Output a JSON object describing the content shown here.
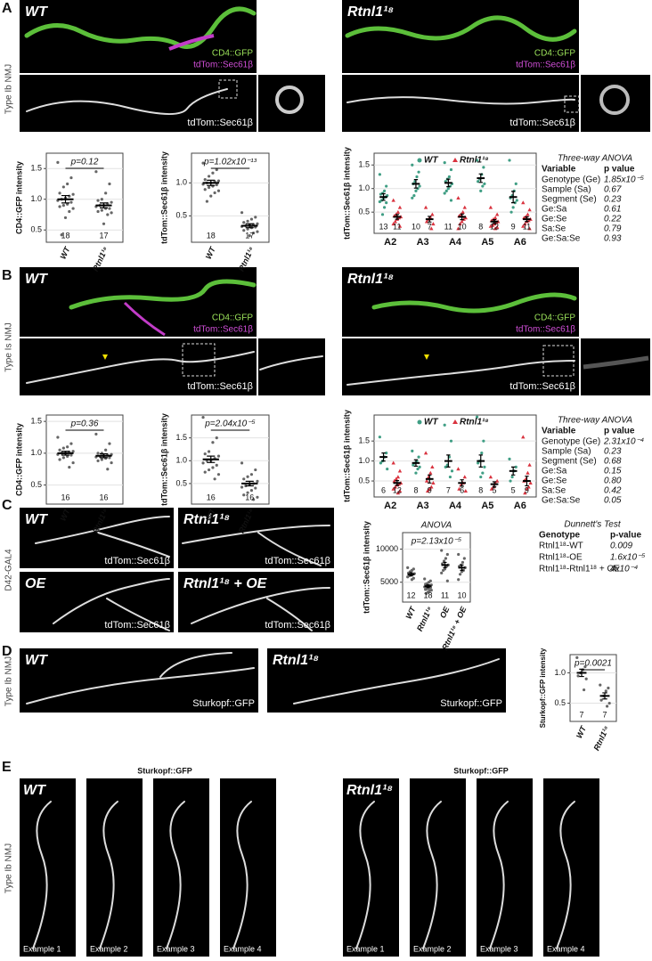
{
  "panel_letters": [
    "A",
    "B",
    "C",
    "D",
    "E"
  ],
  "side_labels": [
    "Type Ib NMJ",
    "Type Is NMJ",
    "D42-GAL4",
    "Type Ib NMJ",
    "Type Ib NMJ"
  ],
  "labels": {
    "wt": "WT",
    "mut": "Rtnl1¹⁸",
    "oe": "OE",
    "mut_oe": "Rtnl1¹⁸ + OE",
    "gfp": "CD4::GFP",
    "sec": "tdTom::Sec61β",
    "sturk": "Sturkopf::GFP",
    "examples": [
      "Example 1",
      "Example 2",
      "Example 3",
      "Example 4"
    ]
  },
  "tables": [
    {
      "title": "Three-way ANOVA",
      "header": [
        "Variable",
        "p value"
      ],
      "rows": [
        [
          "Genotype (Ge)",
          "1.85x10⁻⁵"
        ],
        [
          "Sample (Sa)",
          "0.67"
        ],
        [
          "Segment (Se)",
          "0.23"
        ],
        [
          "Ge:Sa",
          "0.61"
        ],
        [
          "Ge:Se",
          "0.22"
        ],
        [
          "Sa:Se",
          "0.79"
        ],
        [
          "Ge:Sa:Se",
          "0.93"
        ]
      ]
    },
    {
      "title": "Three-way ANOVA",
      "header": [
        "Variable",
        "p value"
      ],
      "rows": [
        [
          "Genotype (Ge)",
          "2.31x10⁻⁴"
        ],
        [
          "Sample (Sa)",
          "0.23"
        ],
        [
          "Segment (Se)",
          "0.68"
        ],
        [
          "Ge:Sa",
          "0.15"
        ],
        [
          "Ge:Se",
          "0.80"
        ],
        [
          "Sa:Se",
          "0.42"
        ],
        [
          "Ge:Sa:Se",
          "0.05"
        ]
      ]
    },
    {
      "title": "Dunnett's Test",
      "header": [
        "Genotype",
        "p-value"
      ],
      "rows": [
        [
          "Rtnl1¹⁸-WT",
          "0.009"
        ],
        [
          "Rtnl1¹⁸-OE",
          "1.6x10⁻⁵"
        ],
        [
          "Rtnl1¹⁸-Rtnl1¹⁸ + OE",
          "4x10⁻⁴"
        ]
      ]
    }
  ],
  "chart_data": [
    {
      "type": "strip",
      "y_label": "CD4::GFP intensity",
      "annotation": "p=0.12",
      "categories": [
        "WT",
        "Rtnl1¹⁸"
      ],
      "ylim": [
        0.3,
        1.75
      ],
      "yticks": [
        0.5,
        {
          "value": 1,
          "label": "1.0"
        },
        1.5
      ],
      "grid": true,
      "series": [
        {
          "color": "#666666",
          "marker": "circle",
          "values": [
            [
              1.6,
              1.35,
              1.25,
              1.2,
              1.1,
              1.08,
              1.05,
              1.02,
              1.0,
              0.98,
              0.95,
              0.92,
              0.9,
              0.88,
              0.85,
              0.8,
              0.7,
              0.42
            ],
            [
              1.45,
              1.25,
              1.1,
              1.0,
              0.98,
              0.95,
              0.93,
              0.9,
              0.9,
              0.88,
              0.85,
              0.85,
              0.82,
              0.8,
              0.78,
              0.75,
              0.6
            ]
          ],
          "means": [
            1.0,
            0.9
          ],
          "sems": [
            0.06,
            0.04
          ],
          "n": [
            18,
            17
          ]
        }
      ]
    },
    {
      "type": "strip",
      "y_label": "tdTom::Sec61β intensity",
      "annotation": "p=1.02x10⁻¹³",
      "categories": [
        "WT",
        "Rtnl1¹⁸"
      ],
      "ylim": [
        0.1,
        1.45
      ],
      "yticks": [
        0.5,
        {
          "value": 1,
          "label": "1.0"
        }
      ],
      "grid": true,
      "series": [
        {
          "color": "#666666",
          "marker": "circle",
          "values": [
            [
              1.3,
              1.2,
              1.15,
              1.1,
              1.05,
              1.03,
              1.02,
              1.0,
              1.0,
              0.98,
              0.97,
              0.95,
              0.93,
              0.9,
              0.88,
              0.85,
              0.8,
              0.72
            ],
            [
              0.55,
              0.48,
              0.45,
              0.42,
              0.4,
              0.38,
              0.37,
              0.36,
              0.35,
              0.34,
              0.33,
              0.32,
              0.3,
              0.28,
              0.26,
              0.24,
              0.2
            ]
          ],
          "means": [
            1.0,
            0.35
          ],
          "sems": [
            0.04,
            0.03
          ],
          "n": [
            18,
            17
          ]
        }
      ]
    },
    {
      "type": "strip",
      "y_label": "tdTom::Sec61β intensity",
      "categories": [
        "A2",
        "A3",
        "A4",
        "A5",
        "A6"
      ],
      "ylim": [
        0.05,
        1.75
      ],
      "yticks": [
        0.5,
        {
          "value": 1,
          "label": "1.0"
        },
        1.5
      ],
      "grid": true,
      "series": [
        {
          "name": "WT",
          "color": "#3f9e84",
          "marker": "circle",
          "values": [
            [
              1.3,
              1.05,
              0.95,
              0.9,
              0.88,
              0.85,
              0.82,
              0.8,
              0.75,
              0.72,
              0.7,
              0.6,
              0.45
            ],
            [
              1.5,
              1.35,
              1.25,
              1.15,
              1.1,
              1.05,
              1.0,
              0.95,
              0.85,
              0.8
            ],
            [
              1.55,
              1.4,
              1.25,
              1.2,
              1.15,
              1.1,
              1.05,
              1.0,
              0.95,
              0.9,
              0.75
            ],
            [
              1.6,
              1.45,
              1.3,
              1.2,
              1.15,
              1.1,
              1.05,
              0.95
            ],
            [
              1.6,
              1.1,
              0.95,
              0.85,
              0.8,
              0.75,
              0.7,
              0.6,
              0.5
            ]
          ],
          "means": [
            0.82,
            1.1,
            1.12,
            1.22,
            0.82
          ],
          "sems": [
            0.07,
            0.09,
            0.08,
            0.09,
            0.12
          ],
          "n": [
            13,
            10,
            11,
            8,
            9
          ]
        },
        {
          "name": "Rtnl1¹⁸",
          "color": "#d9333f",
          "marker": "triangle",
          "values": [
            [
              0.75,
              0.6,
              0.5,
              0.45,
              0.42,
              0.4,
              0.38,
              0.35,
              0.3,
              0.25,
              0.2
            ],
            [
              0.6,
              0.45,
              0.38,
              0.35,
              0.3,
              0.25,
              0.15
            ],
            [
              0.8,
              0.6,
              0.5,
              0.45,
              0.42,
              0.38,
              0.35,
              0.3,
              0.25,
              0.15
            ],
            [
              0.6,
              0.45,
              0.38,
              0.35,
              0.32,
              0.3,
              0.28,
              0.25,
              0.22,
              0.2,
              0.18,
              0.15
            ],
            [
              0.7,
              0.55,
              0.45,
              0.4,
              0.38,
              0.35,
              0.32,
              0.3,
              0.25,
              0.2,
              0.15
            ]
          ],
          "means": [
            0.4,
            0.35,
            0.4,
            0.3,
            0.35
          ],
          "sems": [
            0.05,
            0.06,
            0.06,
            0.04,
            0.05
          ],
          "n": [
            11,
            7,
            10,
            12,
            11
          ]
        }
      ]
    },
    {
      "type": "strip",
      "y_label": "CD4::GFP intensity",
      "annotation": "p=0.36",
      "categories": [
        "WT",
        "Rtnl1¹⁸"
      ],
      "ylim": [
        0.2,
        1.6
      ],
      "yticks": [
        0.5,
        {
          "value": 1,
          "label": "1.0"
        },
        1.5
      ],
      "grid": true,
      "series": [
        {
          "color": "#666666",
          "marker": "circle",
          "values": [
            [
              1.25,
              1.15,
              1.1,
              1.08,
              1.05,
              1.03,
              1.02,
              1.0,
              1.0,
              0.98,
              0.97,
              0.95,
              0.93,
              0.9,
              0.85,
              0.78
            ],
            [
              1.3,
              1.15,
              1.05,
              1.0,
              1.0,
              0.98,
              0.97,
              0.96,
              0.95,
              0.94,
              0.93,
              0.92,
              0.9,
              0.88,
              0.85,
              0.75
            ]
          ],
          "means": [
            1.0,
            0.96
          ],
          "sems": [
            0.03,
            0.03
          ],
          "n": [
            16,
            16
          ]
        }
      ]
    },
    {
      "type": "strip",
      "y_label": "tdTom::Sec61β intensity",
      "annotation": "p=2.04x10⁻⁵",
      "categories": [
        "WT",
        "Rtnl1¹⁸"
      ],
      "ylim": [
        0.05,
        2.0
      ],
      "yticks": [
        0.5,
        {
          "value": 1,
          "label": "1.0"
        },
        1.5
      ],
      "grid": true,
      "series": [
        {
          "color": "#666666",
          "marker": "circle",
          "values": [
            [
              1.95,
              1.5,
              1.4,
              1.2,
              1.15,
              1.1,
              1.05,
              1.0,
              1.0,
              0.95,
              0.9,
              0.85,
              0.8,
              0.75,
              0.7,
              0.6
            ],
            [
              0.95,
              0.8,
              0.7,
              0.65,
              0.6,
              0.55,
              0.5,
              0.48,
              0.45,
              0.42,
              0.4,
              0.35,
              0.3,
              0.25,
              0.2,
              0.15
            ]
          ],
          "means": [
            1.03,
            0.5
          ],
          "sems": [
            0.07,
            0.05
          ],
          "n": [
            16,
            16
          ]
        }
      ]
    },
    {
      "type": "strip",
      "y_label": "tdTom::Sec61β intensity",
      "categories": [
        "A2",
        "A3",
        "A4",
        "A5",
        "A6"
      ],
      "ylim": [
        0.1,
        2.15
      ],
      "yticks": [
        0.5,
        {
          "value": 1,
          "label": "1.0"
        },
        1.5
      ],
      "grid": true,
      "series": [
        {
          "name": "WT",
          "color": "#3f9e84",
          "marker": "circle",
          "values": [
            [
              1.6,
              1.2,
              1.1,
              1.0,
              0.95,
              0.8
            ],
            [
              1.25,
              1.1,
              1.0,
              0.95,
              0.9,
              0.85,
              0.8,
              0.7
            ],
            [
              1.9,
              1.5,
              1.1,
              0.9,
              0.85,
              0.75,
              0.6
            ],
            [
              2.1,
              1.5,
              1.2,
              1.0,
              0.95,
              0.85,
              0.7,
              0.6
            ],
            [
              1.05,
              0.85,
              0.75,
              0.6,
              0.5
            ]
          ],
          "means": [
            1.1,
            0.95,
            1.0,
            1.0,
            0.75
          ],
          "sems": [
            0.1,
            0.08,
            0.15,
            0.15,
            0.1
          ],
          "n": [
            6,
            8,
            7,
            8,
            5
          ]
        },
        {
          "name": "Rtnl1¹⁸",
          "color": "#d9333f",
          "marker": "triangle",
          "values": [
            [
              0.95,
              0.75,
              0.6,
              0.55,
              0.5,
              0.45,
              0.42,
              0.4,
              0.35,
              0.3,
              0.25,
              0.2
            ],
            [
              1.2,
              0.85,
              0.7,
              0.6,
              0.5,
              0.45,
              0.35,
              0.3,
              0.25
            ],
            [
              0.8,
              0.6,
              0.45,
              0.4,
              0.3,
              0.25
            ],
            [
              0.6,
              0.5,
              0.45,
              0.35,
              0.3
            ],
            [
              1.6,
              0.9,
              0.7,
              0.55,
              0.5,
              0.45,
              0.35,
              0.3,
              0.2
            ]
          ],
          "means": [
            0.45,
            0.55,
            0.45,
            0.42,
            0.5
          ],
          "sems": [
            0.06,
            0.1,
            0.08,
            0.06,
            0.12
          ],
          "n": [
            12,
            9,
            6,
            5,
            9
          ]
        }
      ]
    },
    {
      "type": "strip",
      "title": "ANOVA",
      "y_label": "tdTom::Sec61β intensity",
      "annotation": "p=2.13x10⁻⁵",
      "categories": [
        "WT",
        "Rtnl1¹⁸",
        "OE",
        "Rtnl1¹⁸ + OE"
      ],
      "ylim": [
        2000,
        12500
      ],
      "yticks": [
        5000,
        10000
      ],
      "grid": true,
      "series": [
        {
          "color": "#666666",
          "marker": "circle",
          "values": [
            [
              7200,
              7000,
              6800,
              6600,
              6400,
              6300,
              6200,
              6100,
              6000,
              5800,
              5600,
              5400
            ],
            [
              5500,
              5200,
              5000,
              4800,
              4700,
              4600,
              4500,
              4400,
              4400,
              4300,
              4200,
              4100,
              4000,
              3900,
              3800,
              3700,
              3500,
              3300
            ],
            [
              9800,
              9200,
              8600,
              8200,
              7800,
              7600,
              7400,
              7000,
              6800,
              6400,
              5200
            ],
            [
              9200,
              8600,
              8000,
              7600,
              7400,
              7200,
              6800,
              6600,
              6200,
              5400
            ]
          ],
          "means": [
            6200,
            4400,
            7600,
            7200
          ],
          "sems": [
            250,
            200,
            400,
            400
          ],
          "n": [
            12,
            18,
            11,
            10
          ]
        }
      ]
    },
    {
      "type": "strip",
      "y_label": "Sturkopf::GFP intensity",
      "annotation": "p=0.0021",
      "categories": [
        "WT",
        "Rtnl1¹⁸"
      ],
      "ylim": [
        0.2,
        1.3
      ],
      "yticks": [
        0.5,
        {
          "value": 1,
          "label": "1.0"
        }
      ],
      "grid": true,
      "series": [
        {
          "color": "#666666",
          "marker": "circle",
          "values": [
            [
              1.25,
              1.1,
              1.05,
              1.0,
              0.95,
              0.9,
              0.72
            ],
            [
              0.8,
              0.75,
              0.7,
              0.62,
              0.55,
              0.5,
              0.45
            ]
          ],
          "means": [
            1.0,
            0.62
          ],
          "sems": [
            0.06,
            0.05
          ],
          "n": [
            7,
            7
          ]
        }
      ]
    }
  ]
}
